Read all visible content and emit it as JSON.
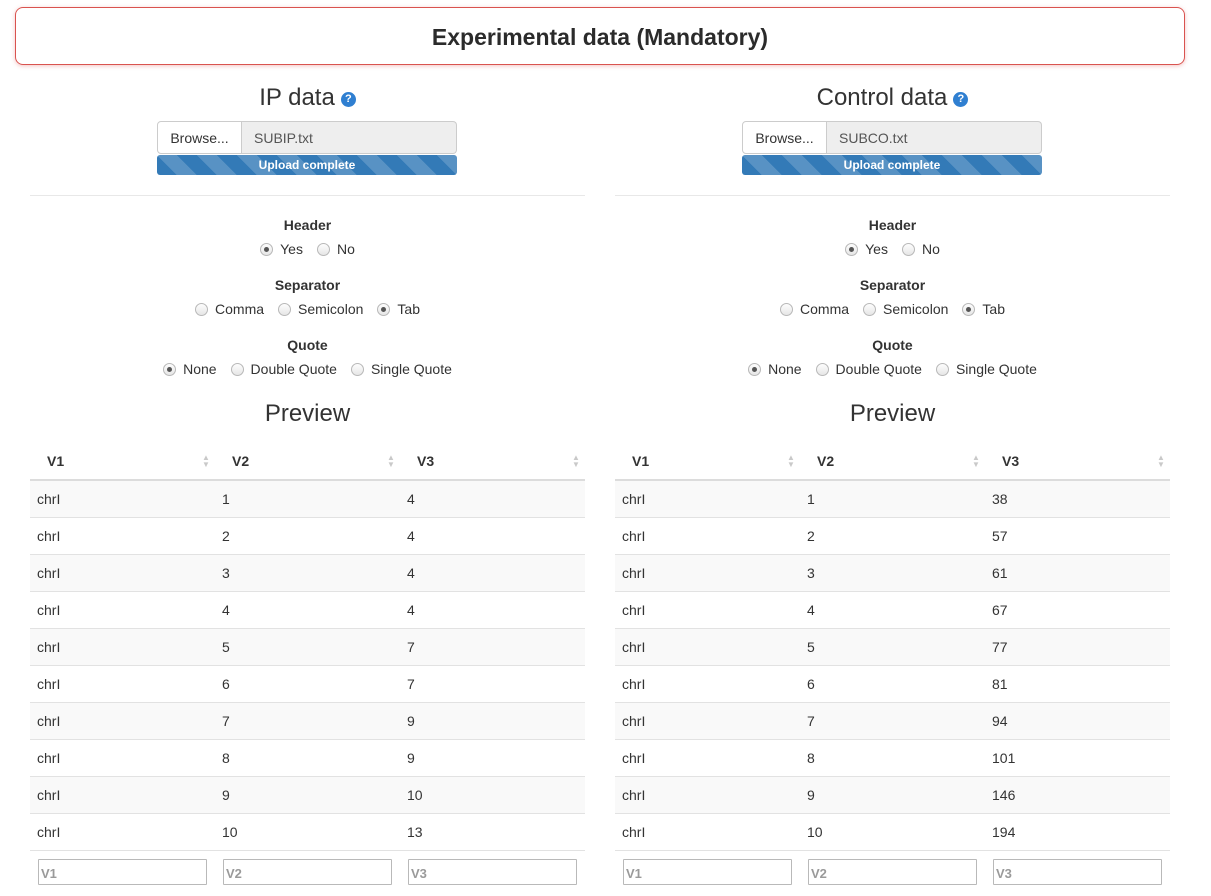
{
  "banner": {
    "title": "Experimental data (Mandatory)"
  },
  "panels": [
    {
      "title": "IP data",
      "help_icon": "?",
      "browse_label": "Browse...",
      "file_name": "SUBIP.txt",
      "progress_text": "Upload complete",
      "progress": 1.0,
      "header": {
        "label": "Header",
        "options": [
          "Yes",
          "No"
        ],
        "selected": 0
      },
      "separator": {
        "label": "Separator",
        "options": [
          "Comma",
          "Semicolon",
          "Tab"
        ],
        "selected": 2
      },
      "quote": {
        "label": "Quote",
        "options": [
          "None",
          "Double Quote",
          "Single Quote"
        ],
        "selected": 0
      },
      "preview_title": "Preview",
      "columns": [
        "V1",
        "V2",
        "V3"
      ],
      "rows": [
        [
          "chrI",
          "1",
          "4"
        ],
        [
          "chrI",
          "2",
          "4"
        ],
        [
          "chrI",
          "3",
          "4"
        ],
        [
          "chrI",
          "4",
          "4"
        ],
        [
          "chrI",
          "5",
          "7"
        ],
        [
          "chrI",
          "6",
          "7"
        ],
        [
          "chrI",
          "7",
          "9"
        ],
        [
          "chrI",
          "8",
          "9"
        ],
        [
          "chrI",
          "9",
          "10"
        ],
        [
          "chrI",
          "10",
          "13"
        ]
      ],
      "filter_placeholders": [
        "V1",
        "V2",
        "V3"
      ]
    },
    {
      "title": "Control data",
      "help_icon": "?",
      "browse_label": "Browse...",
      "file_name": "SUBCO.txt",
      "progress_text": "Upload complete",
      "progress": 1.0,
      "header": {
        "label": "Header",
        "options": [
          "Yes",
          "No"
        ],
        "selected": 0
      },
      "separator": {
        "label": "Separator",
        "options": [
          "Comma",
          "Semicolon",
          "Tab"
        ],
        "selected": 2
      },
      "quote": {
        "label": "Quote",
        "options": [
          "None",
          "Double Quote",
          "Single Quote"
        ],
        "selected": 0
      },
      "preview_title": "Preview",
      "columns": [
        "V1",
        "V2",
        "V3"
      ],
      "rows": [
        [
          "chrI",
          "1",
          "38"
        ],
        [
          "chrI",
          "2",
          "57"
        ],
        [
          "chrI",
          "3",
          "61"
        ],
        [
          "chrI",
          "4",
          "67"
        ],
        [
          "chrI",
          "5",
          "77"
        ],
        [
          "chrI",
          "6",
          "81"
        ],
        [
          "chrI",
          "7",
          "94"
        ],
        [
          "chrI",
          "8",
          "101"
        ],
        [
          "chrI",
          "9",
          "146"
        ],
        [
          "chrI",
          "10",
          "194"
        ]
      ],
      "filter_placeholders": [
        "V1",
        "V2",
        "V3"
      ]
    }
  ],
  "colors": {
    "banner_border": "#d9534f",
    "help_icon": "#2f7fd1",
    "progress_bar": "#337ab7"
  }
}
